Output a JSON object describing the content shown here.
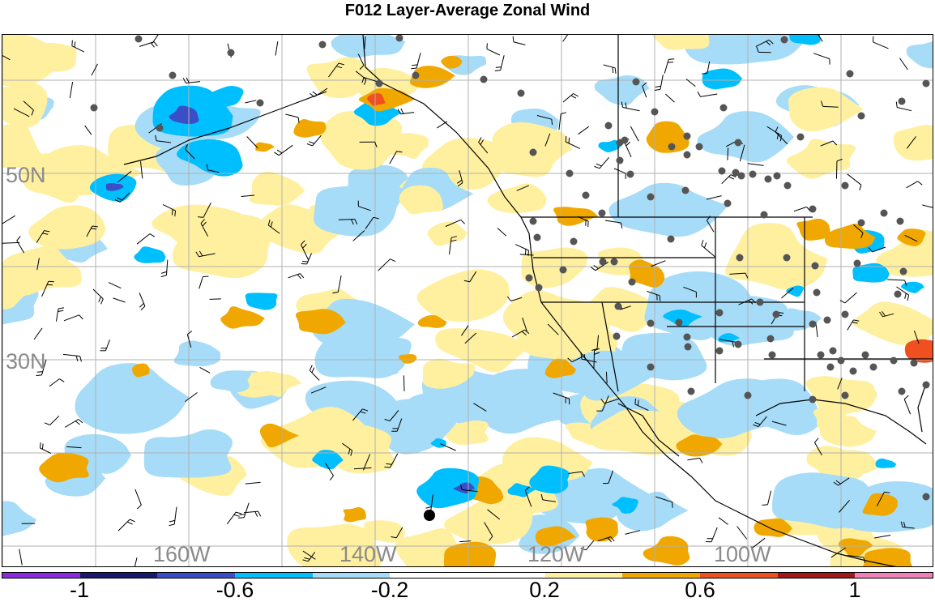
{
  "title": "F012 Layer-Average Zonal Wind",
  "map": {
    "lat_labels": [
      "50N",
      "30N"
    ],
    "lon_labels": [
      "160W",
      "140W",
      "120W",
      "100W"
    ],
    "gridline_color": "#b0b0b0",
    "label_color": "#8a8a8a",
    "station_marker": "filled-circle-dark-gray",
    "highlight_marker": "filled-circle-black",
    "wind_symbol": "wind-barb"
  },
  "colorbar": {
    "colors": [
      "#8a2be2",
      "#191970",
      "#3a4fc7",
      "#00bfff",
      "#a6dcf7",
      "#ffffff",
      "#ffffff",
      "#fff0a0",
      "#f0a800",
      "#f05020",
      "#a01818",
      "#f080b8"
    ],
    "tick_labels": [
      "-1",
      "-0.6",
      "-0.2",
      "0.2",
      "0.6",
      "1"
    ],
    "positive_colors": [
      "#fff0a0",
      "#f0a800",
      "#f05020"
    ],
    "negative_colors": [
      "#a6dcf7",
      "#00bfff",
      "#3a4fc7"
    ]
  }
}
